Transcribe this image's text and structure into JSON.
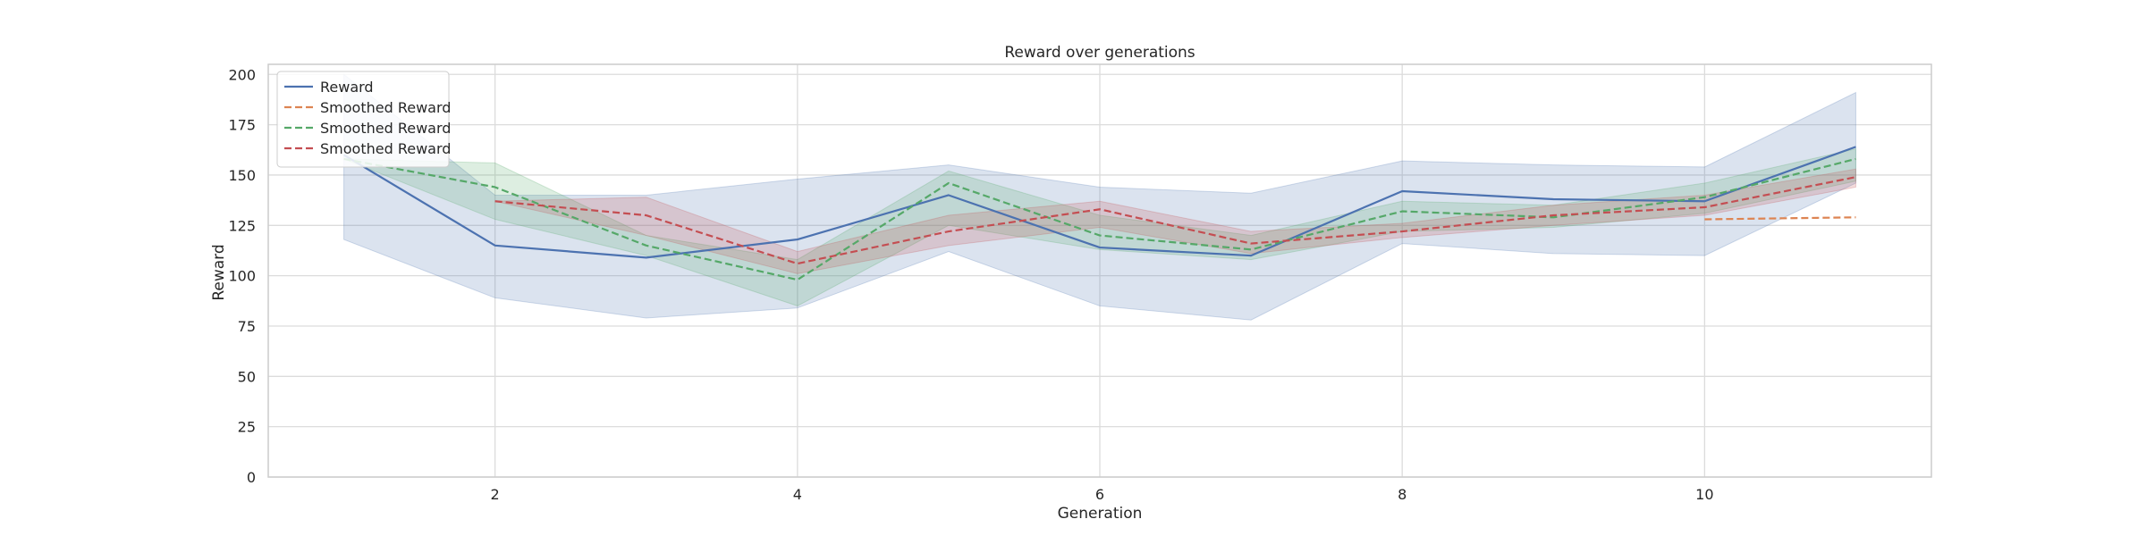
{
  "chart_data": {
    "type": "line",
    "title": "Reward over generations",
    "xlabel": "Generation",
    "ylabel": "Reward",
    "xlim": [
      0.5,
      11.5
    ],
    "ylim": [
      0,
      205
    ],
    "xticks": [
      2,
      4,
      6,
      8,
      10
    ],
    "yticks": [
      0,
      25,
      50,
      75,
      100,
      125,
      150,
      175,
      200
    ],
    "grid": true,
    "legend_position": "top-left",
    "series": [
      {
        "name": "Reward",
        "style": "solid",
        "color": "#4c72b0",
        "x": [
          1,
          2,
          3,
          4,
          5,
          6,
          7,
          8,
          9,
          10,
          11
        ],
        "values": [
          160,
          115,
          109,
          118,
          140,
          114,
          110,
          142,
          138,
          137,
          164
        ],
        "band_lower": [
          118,
          89,
          79,
          84,
          112,
          85,
          78,
          116,
          111,
          110,
          146
        ],
        "band_upper": [
          200,
          140,
          140,
          148,
          155,
          144,
          141,
          157,
          155,
          154,
          191
        ]
      },
      {
        "name": "Smoothed Reward",
        "style": "dashed",
        "color": "#dd8452",
        "x": [
          10,
          11
        ],
        "values": [
          128,
          129
        ]
      },
      {
        "name": "Smoothed Reward",
        "style": "dashed",
        "color": "#55a868",
        "x": [
          1,
          2,
          3,
          4,
          5,
          6,
          7,
          8,
          9,
          10,
          11
        ],
        "values": [
          158,
          144,
          115,
          98,
          146,
          120,
          113,
          132,
          129,
          139,
          158
        ],
        "band_lower": [
          158,
          128,
          110,
          85,
          125,
          113,
          108,
          122,
          124,
          131,
          147
        ],
        "band_upper": [
          158,
          156,
          120,
          108,
          152,
          130,
          120,
          137,
          135,
          146,
          163
        ]
      },
      {
        "name": "Smoothed Reward",
        "style": "dashed",
        "color": "#c44e52",
        "x": [
          2,
          3,
          4,
          5,
          6,
          7,
          8,
          9,
          10,
          11
        ],
        "values": [
          137,
          130,
          106,
          122,
          133,
          116,
          122,
          130,
          134,
          149
        ],
        "band_lower": [
          137,
          120,
          101,
          115,
          124,
          111,
          119,
          125,
          130,
          144
        ],
        "band_upper": [
          137,
          139,
          112,
          130,
          137,
          122,
          126,
          135,
          140,
          153
        ]
      }
    ]
  }
}
